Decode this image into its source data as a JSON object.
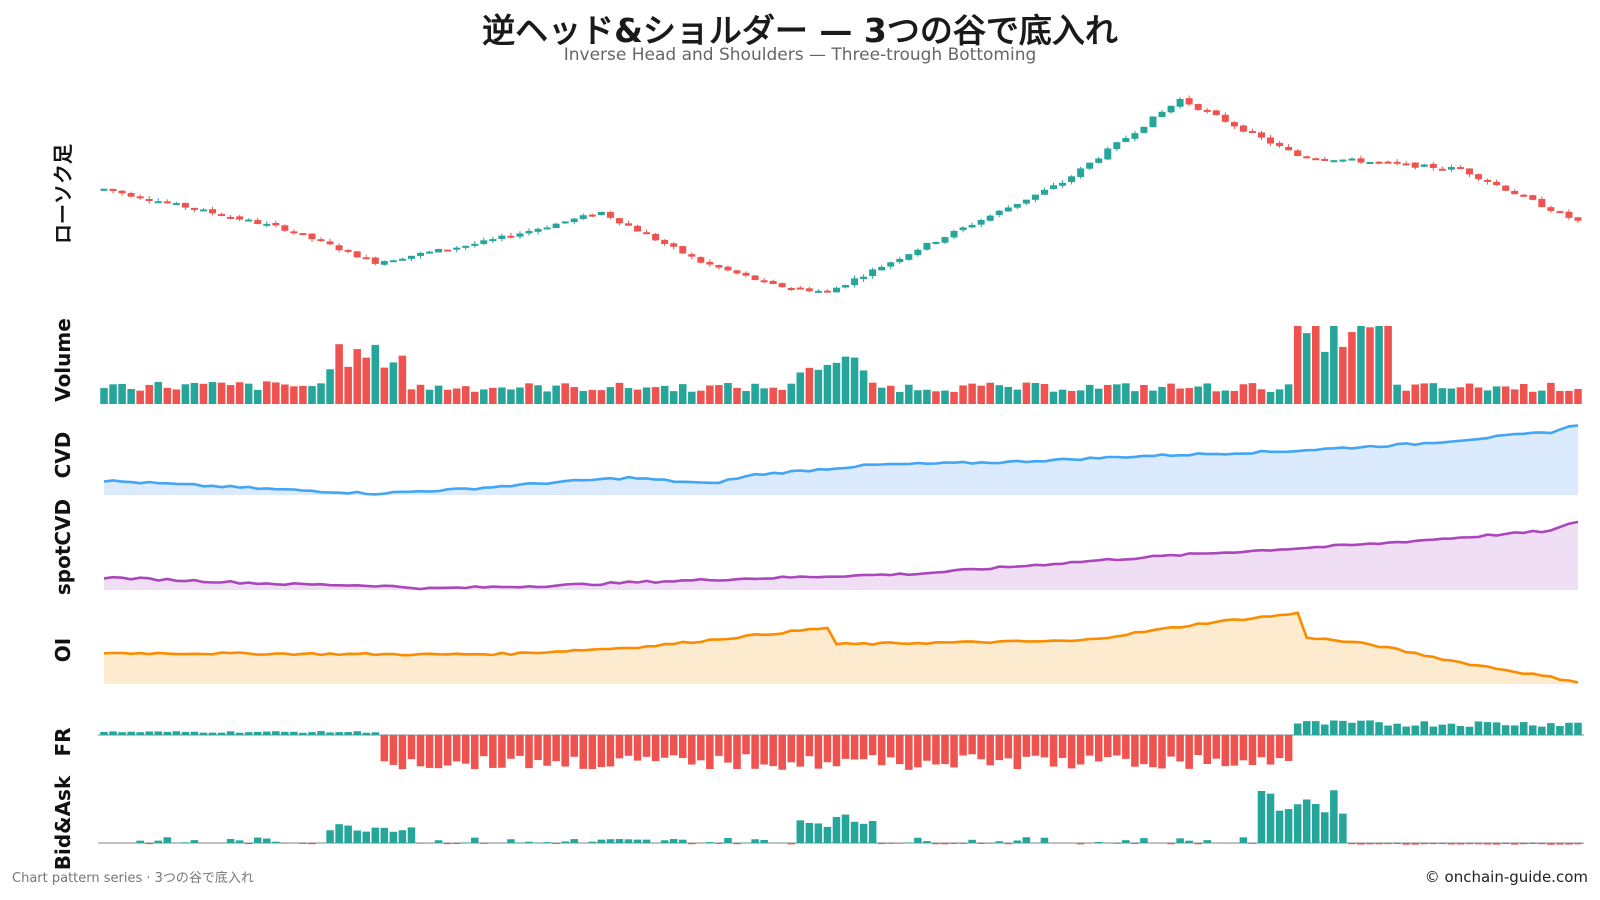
{
  "header": {
    "title": "逆ヘッド&ショルダー — 3つの谷で底入れ",
    "subtitle": "Inverse Head and Shoulders — Three-trough Bottoming"
  },
  "footer": {
    "left": "Chart pattern series · 3つの谷で底入れ",
    "right": "© onchain-guide.com"
  },
  "colors": {
    "up": "#26a69a",
    "down": "#ef5350",
    "cvd": "#42a5f5",
    "cvd_fill": "#dbeafc",
    "spot": "#ab47bc",
    "spot_fill": "#f0def4",
    "oi": "#fb8c00",
    "oi_fill": "#fdebcf"
  },
  "chart_data": {
    "type": "multi-panel",
    "x_count": 164,
    "panels": [
      {
        "name": "ローソク足",
        "kind": "candlestick",
        "points": [
          [
            0,
            100
          ],
          [
            20,
            88
          ],
          [
            30,
            78
          ],
          [
            42,
            84
          ],
          [
            55,
            93
          ],
          [
            66,
            78
          ],
          [
            74,
            71
          ],
          [
            80,
            69
          ],
          [
            90,
            82
          ],
          [
            106,
            102
          ],
          [
            119,
            127
          ],
          [
            132,
            110
          ],
          [
            145,
            107
          ],
          [
            150,
            106
          ],
          [
            164,
            89
          ]
        ]
      },
      {
        "name": "Volume",
        "kind": "bar",
        "regimes": [
          [
            0,
            25,
            0.24
          ],
          [
            25,
            34,
            0.62
          ],
          [
            34,
            77,
            0.22
          ],
          [
            77,
            85,
            0.52
          ],
          [
            85,
            132,
            0.22
          ],
          [
            132,
            143,
            0.94
          ],
          [
            143,
            164,
            0.22
          ]
        ]
      },
      {
        "name": "CVD",
        "kind": "area",
        "points": [
          [
            0,
            0.19
          ],
          [
            10,
            0.13
          ],
          [
            20,
            0.07
          ],
          [
            30,
            0.02
          ],
          [
            40,
            0.08
          ],
          [
            50,
            0.17
          ],
          [
            58,
            0.23
          ],
          [
            67,
            0.15
          ],
          [
            72,
            0.27
          ],
          [
            85,
            0.4
          ],
          [
            100,
            0.44
          ],
          [
            115,
            0.52
          ],
          [
            130,
            0.58
          ],
          [
            145,
            0.68
          ],
          [
            160,
            0.84
          ],
          [
            164,
            0.97
          ]
        ]
      },
      {
        "name": "spotCVD",
        "kind": "area",
        "points": [
          [
            0,
            0.17
          ],
          [
            20,
            0.08
          ],
          [
            30,
            0.06
          ],
          [
            36,
            0.02
          ],
          [
            50,
            0.06
          ],
          [
            60,
            0.11
          ],
          [
            70,
            0.15
          ],
          [
            90,
            0.22
          ],
          [
            110,
            0.4
          ],
          [
            120,
            0.48
          ],
          [
            140,
            0.62
          ],
          [
            160,
            0.8
          ],
          [
            164,
            0.97
          ]
        ]
      },
      {
        "name": "OI",
        "kind": "area",
        "points": [
          [
            0,
            0.43
          ],
          [
            20,
            0.42
          ],
          [
            37,
            0.41
          ],
          [
            45,
            0.42
          ],
          [
            60,
            0.52
          ],
          [
            80,
            0.78
          ],
          [
            81,
            0.55
          ],
          [
            90,
            0.57
          ],
          [
            108,
            0.6
          ],
          [
            122,
            0.85
          ],
          [
            132,
            0.98
          ],
          [
            133,
            0.65
          ],
          [
            140,
            0.55
          ],
          [
            150,
            0.3
          ],
          [
            164,
            0.01
          ]
        ]
      },
      {
        "name": "FR",
        "kind": "bar",
        "regimes": [
          [
            0,
            31,
            0.12
          ],
          [
            31,
            132,
            -1.0
          ],
          [
            132,
            164,
            0.45
          ]
        ]
      },
      {
        "name": "Bid&Ask",
        "kind": "bar",
        "regimes": [
          [
            0,
            25,
            0.05
          ],
          [
            25,
            35,
            0.38
          ],
          [
            35,
            77,
            0.03
          ],
          [
            77,
            86,
            0.55
          ],
          [
            86,
            128,
            0.04
          ],
          [
            128,
            138,
            1.0
          ],
          [
            138,
            164,
            -0.12
          ]
        ]
      }
    ]
  }
}
